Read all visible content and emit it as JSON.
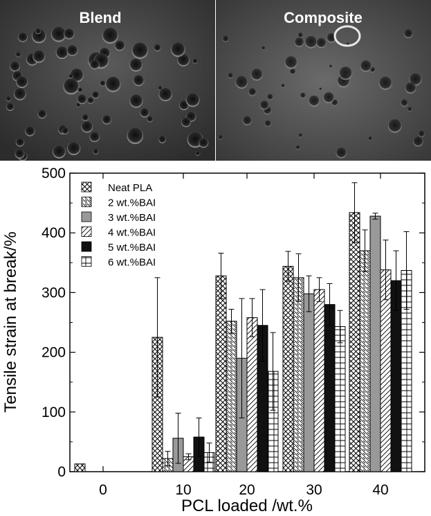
{
  "panels": {
    "left_label": "Blend",
    "right_label": "Composite"
  },
  "chart_data": {
    "type": "bar",
    "xlabel": "PCL loaded /wt.%",
    "ylabel": "Tensile strain  at break/%",
    "ylim": [
      0,
      500
    ],
    "yticks": [
      "0",
      "100",
      "200",
      "300",
      "400",
      "500"
    ],
    "categories": [
      "0",
      "10",
      "20",
      "30",
      "40"
    ],
    "legend_position": "top-left",
    "series": [
      {
        "name": "Neat PLA",
        "pattern": "crosshatch-diagonal",
        "color": "#000000",
        "values": [
          13,
          225,
          328,
          344,
          434
        ],
        "errors": [
          0,
          100,
          38,
          25,
          50
        ]
      },
      {
        "name": "2 wt.%BAI",
        "pattern": "backslash",
        "color": "#000000",
        "values": [
          null,
          22,
          252,
          325,
          370
        ],
        "errors": [
          null,
          12,
          20,
          40,
          35
        ]
      },
      {
        "name": "3 wt.%BAI",
        "pattern": "solid",
        "color": "#999999",
        "values": [
          null,
          56,
          190,
          298,
          428
        ],
        "errors": [
          null,
          42,
          100,
          30,
          5
        ]
      },
      {
        "name": "4 wt.%BAI",
        "pattern": "slash",
        "color": "#000000",
        "values": [
          null,
          25,
          258,
          305,
          338
        ],
        "errors": [
          null,
          5,
          32,
          20,
          50
        ]
      },
      {
        "name": "5 wt.%BAI",
        "pattern": "solid",
        "color": "#111111",
        "values": [
          null,
          58,
          245,
          280,
          320
        ],
        "errors": [
          null,
          32,
          60,
          35,
          50
        ]
      },
      {
        "name": "6 wt.%BAI",
        "pattern": "grid",
        "color": "#000000",
        "values": [
          null,
          32,
          168,
          243,
          337
        ],
        "errors": [
          null,
          16,
          65,
          27,
          65
        ]
      }
    ]
  }
}
